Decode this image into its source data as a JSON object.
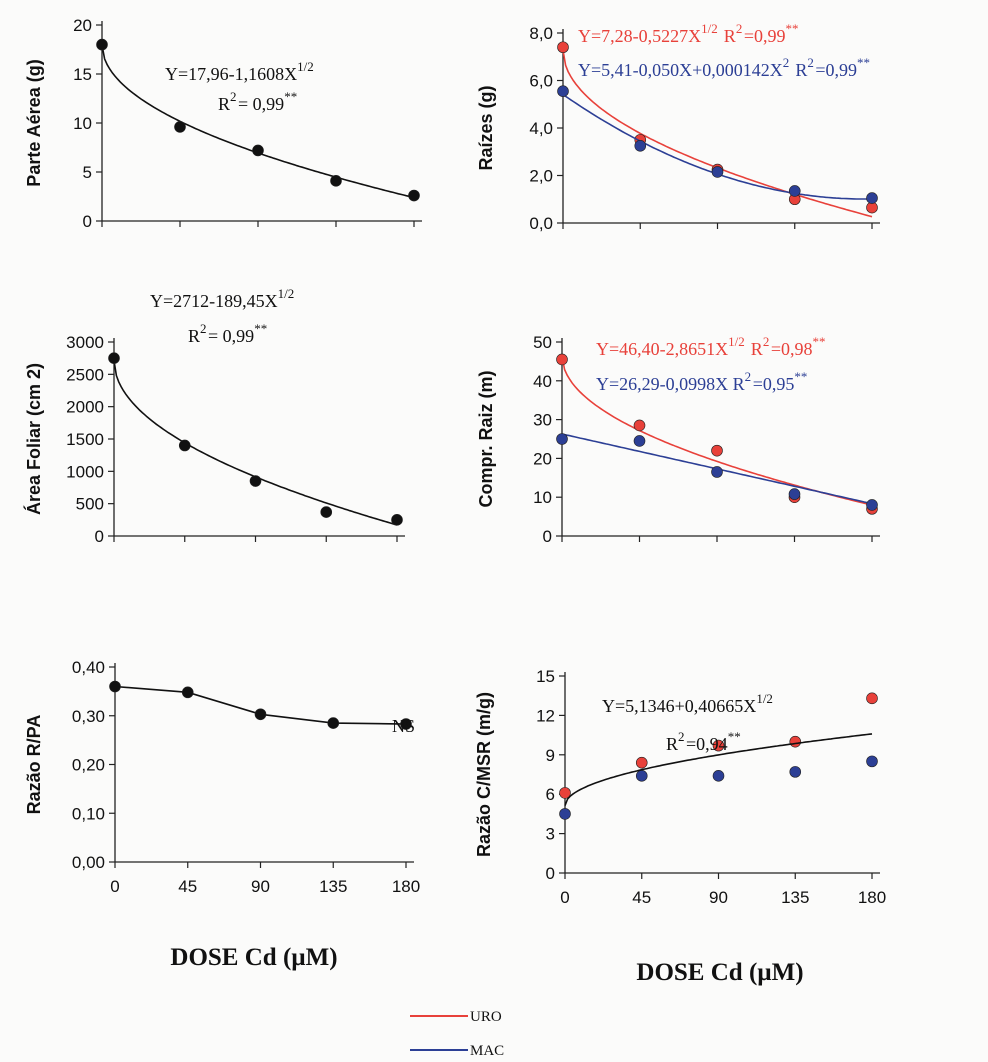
{
  "colors": {
    "black": "#111111",
    "uro": "#e8413a",
    "mac": "#2c3f95"
  },
  "xlabel": "DOSE Cd (µM)",
  "legend": [
    {
      "name": "URO",
      "color": "#e8413a"
    },
    {
      "name": "MAC",
      "color": "#2c3f95"
    }
  ],
  "chart_data": [
    {
      "type": "scatter",
      "id": "pa",
      "ylabel": "Parte Aérea (g)",
      "xticks": [
        "",
        "",
        "",
        "",
        ""
      ],
      "xlim": [
        0,
        180
      ],
      "ylim": [
        0,
        20
      ],
      "yticks": [
        "0",
        "5",
        "10",
        "15",
        "20"
      ],
      "series": [
        {
          "x": [
            0,
            45,
            90,
            135,
            180
          ],
          "y": [
            18.0,
            9.6,
            7.2,
            4.1,
            2.6
          ],
          "color": "#111111",
          "fit": "sqrt",
          "coef": [
            17.96,
            -1.1608
          ]
        }
      ],
      "equations": [
        {
          "text": "Y=17,96-1,1608X",
          "sup": "1/2",
          "color": "#111111"
        },
        {
          "text": "R",
          "sup": "2",
          "text2": "= 0,99",
          "sig": "**",
          "color": "#111111"
        }
      ]
    },
    {
      "type": "scatter",
      "id": "raizes",
      "ylabel": "Raízes (g)",
      "xticks": [
        "",
        "",
        "",
        "",
        ""
      ],
      "xlim": [
        0,
        180
      ],
      "ylim": [
        0,
        8
      ],
      "yticks": [
        "0,0",
        "2,0",
        "4,0",
        "6,0",
        "8,0"
      ],
      "series": [
        {
          "name": "URO",
          "x": [
            0,
            45,
            90,
            135,
            180
          ],
          "y": [
            7.4,
            3.5,
            2.25,
            1.0,
            0.65
          ],
          "color": "#e8413a",
          "fit": "sqrt",
          "coef": [
            7.28,
            -0.5227
          ]
        },
        {
          "name": "MAC",
          "x": [
            0,
            45,
            90,
            135,
            180
          ],
          "y": [
            5.55,
            3.25,
            2.15,
            1.35,
            1.05
          ],
          "color": "#2c3f95",
          "fit": "quad",
          "coef": [
            5.41,
            -0.05,
            0.000142
          ]
        }
      ],
      "equations": [
        {
          "text": "Y=7,28-0,5227X",
          "sup": "1/2",
          "text2": "  R",
          "sup2": "2",
          "text3": "=0,99",
          "sig": "**",
          "color": "#e8413a"
        },
        {
          "text": "Y=5,41-0,050X+0,000142X",
          "sup": "2",
          "text2": "  R",
          "sup2": "2",
          "text3": "=0,99",
          "sig": "**",
          "color": "#2c3f95"
        }
      ]
    },
    {
      "type": "scatter",
      "id": "af",
      "ylabel": "Área Foliar (cm 2)",
      "xticks": [
        "",
        "",
        "",
        "",
        ""
      ],
      "xlim": [
        0,
        180
      ],
      "ylim": [
        0,
        3000
      ],
      "yticks": [
        "0",
        "500",
        "1000",
        "1500",
        "2000",
        "2500",
        "3000"
      ],
      "series": [
        {
          "x": [
            0,
            45,
            90,
            135,
            180
          ],
          "y": [
            2750,
            1400,
            850,
            370,
            250
          ],
          "color": "#111111",
          "fit": "sqrt",
          "coef": [
            2712,
            -189.45
          ]
        }
      ],
      "equations": [
        {
          "text": "Y=2712-189,45X",
          "sup": "1/2",
          "color": "#111111"
        },
        {
          "text": "R",
          "sup": "2",
          "text2": "= 0,99",
          "sig": "**",
          "color": "#111111"
        }
      ]
    },
    {
      "type": "scatter",
      "id": "cr",
      "ylabel": "Compr. Raiz (m)",
      "xticks": [
        "",
        "",
        "",
        "",
        ""
      ],
      "xlim": [
        0,
        180
      ],
      "ylim": [
        0,
        50
      ],
      "yticks": [
        "0",
        "10",
        "20",
        "30",
        "40",
        "50"
      ],
      "series": [
        {
          "name": "URO",
          "x": [
            0,
            45,
            90,
            135,
            180
          ],
          "y": [
            45.5,
            28.5,
            22.0,
            10.0,
            7.0
          ],
          "color": "#e8413a",
          "fit": "sqrt",
          "coef": [
            46.4,
            -2.8651
          ]
        },
        {
          "name": "MAC",
          "x": [
            0,
            45,
            90,
            135,
            180
          ],
          "y": [
            25.0,
            24.5,
            16.5,
            10.8,
            8.0
          ],
          "color": "#2c3f95",
          "fit": "lin",
          "coef": [
            26.29,
            -0.0998
          ]
        }
      ],
      "equations": [
        {
          "text": "Y=46,40-2,8651X",
          "sup": "1/2",
          "text2": "  R",
          "sup2": "2",
          "text3": "=0,98",
          "sig": "**",
          "color": "#e8413a"
        },
        {
          "text": "Y=26,29-0,0998X",
          "sup": "",
          "text2": "   R",
          "sup2": "2",
          "text3": "=0,95",
          "sig": "**",
          "color": "#2c3f95"
        }
      ]
    },
    {
      "type": "line",
      "id": "rpa",
      "ylabel": "Razão R/PA",
      "xticks": [
        "0",
        "45",
        "90",
        "135",
        "180"
      ],
      "xlim": [
        0,
        180
      ],
      "ylim": [
        0,
        0.4
      ],
      "yticks": [
        "0,00",
        "0,10",
        "0,20",
        "0,30",
        "0,40"
      ],
      "series": [
        {
          "x": [
            0,
            45,
            90,
            135,
            180
          ],
          "y": [
            0.36,
            0.348,
            0.303,
            0.285,
            0.283
          ],
          "color": "#111111",
          "fit": "connect"
        }
      ],
      "equations": [
        {
          "text": "NS",
          "color": "#111111"
        }
      ]
    },
    {
      "type": "scatter",
      "id": "cmsr",
      "ylabel": "Razão C/MSR (m/g)",
      "xticks": [
        "0",
        "45",
        "90",
        "135",
        "180"
      ],
      "xlim": [
        0,
        180
      ],
      "ylim": [
        0,
        15
      ],
      "yticks": [
        "0",
        "3",
        "6",
        "9",
        "12",
        "15"
      ],
      "series": [
        {
          "name": "URO",
          "x": [
            0,
            45,
            90,
            135,
            180
          ],
          "y": [
            6.1,
            8.4,
            9.7,
            10.0,
            13.3
          ],
          "color": "#e8413a"
        },
        {
          "name": "MAC",
          "x": [
            0,
            45,
            90,
            135,
            180
          ],
          "y": [
            4.5,
            7.4,
            7.4,
            7.7,
            8.5
          ],
          "color": "#2c3f95"
        },
        {
          "x": [],
          "y": [],
          "color": "#111111",
          "fit": "sqrt",
          "coef": [
            5.1346,
            0.40665
          ],
          "fitOnly": true
        }
      ],
      "equations": [
        {
          "text": "Y=5,1346+0,40665X",
          "sup": "1/2",
          "color": "#111111"
        },
        {
          "text": "R",
          "sup": "2",
          "text2": "=0,94",
          "sig": "**",
          "color": "#111111"
        }
      ]
    }
  ]
}
